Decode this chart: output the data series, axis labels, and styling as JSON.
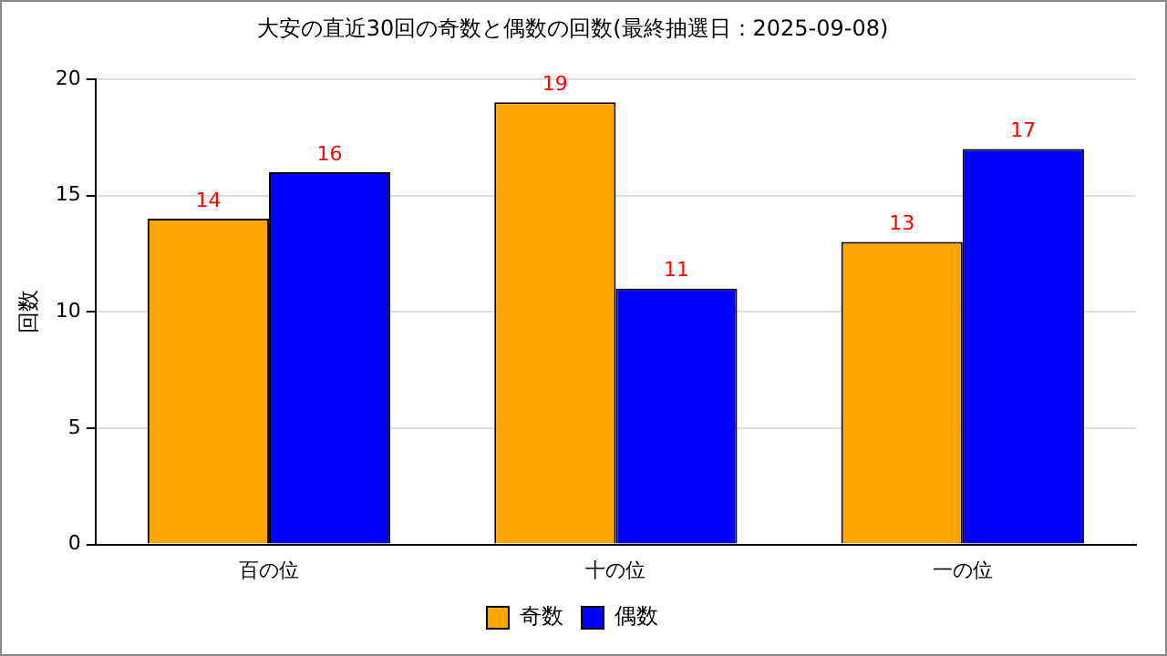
{
  "chart_data": {
    "type": "bar",
    "title": "大安の直近30回の奇数と偶数の回数(最終抽選日：2025-09-08)",
    "ylabel": "回数",
    "categories": [
      "百の位",
      "十の位",
      "一の位"
    ],
    "series": [
      {
        "name": "奇数",
        "color": "#ffa500",
        "values": [
          14,
          19,
          13
        ]
      },
      {
        "name": "偶数",
        "color": "#0000ff",
        "values": [
          16,
          11,
          17
        ]
      }
    ],
    "ylim": [
      0,
      20
    ],
    "yticks": [
      0,
      5,
      10,
      15,
      20
    ],
    "grid": "y",
    "legend": "bottom",
    "data_labels": true
  }
}
